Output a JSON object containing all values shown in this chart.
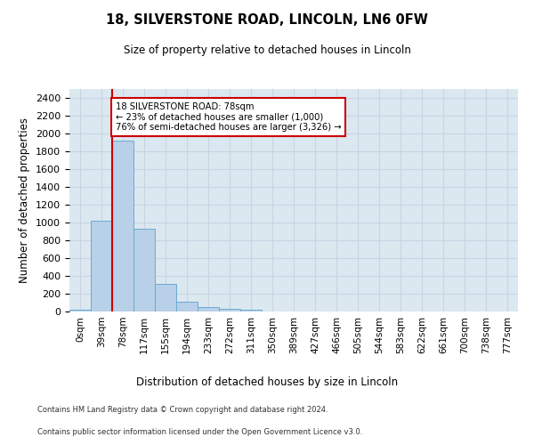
{
  "title_line1": "18, SILVERSTONE ROAD, LINCOLN, LN6 0FW",
  "title_line2": "Size of property relative to detached houses in Lincoln",
  "xlabel": "Distribution of detached houses by size in Lincoln",
  "ylabel": "Number of detached properties",
  "footer_line1": "Contains HM Land Registry data © Crown copyright and database right 2024.",
  "footer_line2": "Contains public sector information licensed under the Open Government Licence v3.0.",
  "bar_labels": [
    "0sqm",
    "39sqm",
    "78sqm",
    "117sqm",
    "155sqm",
    "194sqm",
    "233sqm",
    "272sqm",
    "311sqm",
    "350sqm",
    "389sqm",
    "427sqm",
    "466sqm",
    "505sqm",
    "544sqm",
    "583sqm",
    "622sqm",
    "661sqm",
    "700sqm",
    "738sqm",
    "777sqm"
  ],
  "bar_values": [
    20,
    1020,
    1920,
    930,
    315,
    110,
    55,
    32,
    20,
    0,
    0,
    0,
    0,
    0,
    0,
    0,
    0,
    0,
    0,
    0,
    0
  ],
  "bar_color": "#b8d0e8",
  "bar_edge_color": "#6aaad4",
  "ylim": [
    0,
    2500
  ],
  "yticks": [
    0,
    200,
    400,
    600,
    800,
    1000,
    1200,
    1400,
    1600,
    1800,
    2000,
    2200,
    2400
  ],
  "vline_x_index": 2,
  "annotation_text_line1": "18 SILVERSTONE ROAD: 78sqm",
  "annotation_text_line2": "← 23% of detached houses are smaller (1,000)",
  "annotation_text_line3": "76% of semi-detached houses are larger (3,326) →",
  "annotation_box_color": "#ffffff",
  "annotation_box_edge_color": "#cc0000",
  "vline_color": "#cc0000",
  "grid_color": "#c8d4e4",
  "background_color": "#dce8f0"
}
